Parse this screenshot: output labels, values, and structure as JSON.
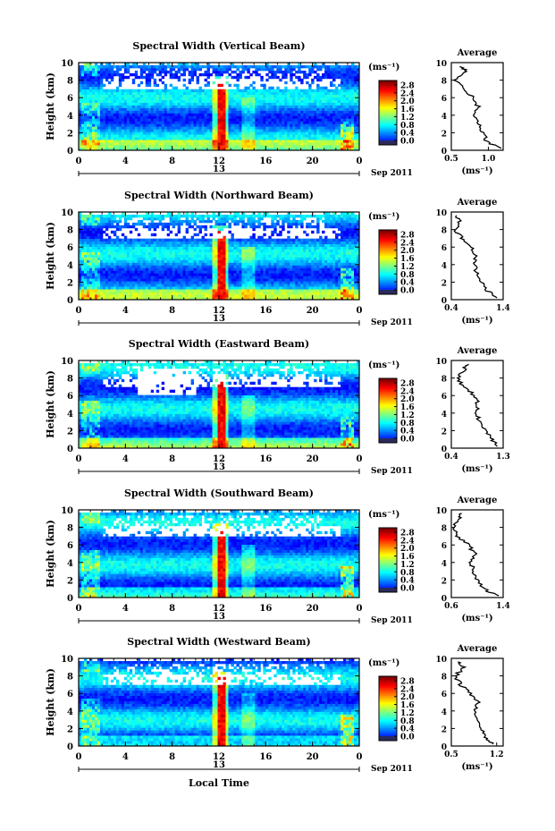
{
  "figure": {
    "date_label": "Sep 2011",
    "day_label": "13",
    "xlabel": "Local Time",
    "average_title": "Average",
    "unit_label": "(ms⁻¹)",
    "colorbar_ticks": [
      "2.8",
      "2.4",
      "2.0",
      "1.6",
      "1.2",
      "0.8",
      "0.4",
      "0.0"
    ]
  },
  "chart_data": [
    {
      "type": "heatmap",
      "title": "Spectral Width (Vertical Beam)",
      "ylabel": "Height (km)",
      "xlim": [
        0,
        24
      ],
      "ylim": [
        0,
        10
      ],
      "xticks": [
        "0",
        "4",
        "8",
        "12",
        "16",
        "20",
        "0"
      ],
      "yticks": [
        "0",
        "2",
        "4",
        "6",
        "8",
        "10"
      ],
      "colorbar": {
        "range": [
          0.0,
          3.0
        ],
        "unit": "(ms⁻¹)"
      },
      "average": {
        "xlim": [
          0.5,
          1.2
        ],
        "xticks": [
          "0.5",
          "1.0"
        ],
        "xlabel": "(ms⁻¹)",
        "profile": [
          [
            0.2,
            1.15
          ],
          [
            1,
            0.98
          ],
          [
            2,
            0.92
          ],
          [
            3,
            0.86
          ],
          [
            4,
            0.82
          ],
          [
            5,
            0.86
          ],
          [
            6,
            0.8
          ],
          [
            7,
            0.66
          ],
          [
            8,
            0.56
          ],
          [
            9,
            0.7
          ],
          [
            9.6,
            0.62
          ]
        ]
      }
    },
    {
      "type": "heatmap",
      "title": "Spectral Width (Northward Beam)",
      "ylabel": "Height (km)",
      "xlim": [
        0,
        24
      ],
      "ylim": [
        0,
        10
      ],
      "xticks": [
        "0",
        "4",
        "8",
        "12",
        "16",
        "20",
        "0"
      ],
      "yticks": [
        "0",
        "2",
        "4",
        "6",
        "8",
        "10"
      ],
      "colorbar": {
        "range": [
          0.0,
          3.0
        ],
        "unit": "(ms⁻¹)"
      },
      "average": {
        "xlim": [
          0.4,
          1.4
        ],
        "xticks": [
          "0.4",
          "1.4"
        ],
        "xlabel": "(ms⁻¹)",
        "profile": [
          [
            0.2,
            1.3
          ],
          [
            1,
            1.1
          ],
          [
            2,
            0.98
          ],
          [
            3,
            0.9
          ],
          [
            4,
            0.84
          ],
          [
            5,
            0.88
          ],
          [
            6,
            0.78
          ],
          [
            7,
            0.6
          ],
          [
            8,
            0.48
          ],
          [
            9,
            0.55
          ],
          [
            9.6,
            0.5
          ]
        ]
      }
    },
    {
      "type": "heatmap",
      "title": "Spectral Width (Eastward Beam)",
      "ylabel": "Height (km)",
      "xlim": [
        0,
        24
      ],
      "ylim": [
        0,
        10
      ],
      "xticks": [
        "0",
        "4",
        "8",
        "12",
        "16",
        "20",
        "0"
      ],
      "yticks": [
        "0",
        "2",
        "4",
        "6",
        "8",
        "10"
      ],
      "colorbar": {
        "range": [
          0.0,
          3.0
        ],
        "unit": "(ms⁻¹)"
      },
      "average": {
        "xlim": [
          0.4,
          1.3
        ],
        "xticks": [
          "0.4",
          "1.3"
        ],
        "xlabel": "(ms⁻¹)",
        "profile": [
          [
            0.2,
            1.2
          ],
          [
            1,
            1.1
          ],
          [
            2,
            0.98
          ],
          [
            3,
            0.9
          ],
          [
            4,
            0.82
          ],
          [
            5,
            0.86
          ],
          [
            6,
            0.8
          ],
          [
            7,
            0.62
          ],
          [
            8,
            0.5
          ],
          [
            9,
            0.62
          ],
          [
            9.6,
            0.7
          ]
        ]
      }
    },
    {
      "type": "heatmap",
      "title": "Spectral Width (Southward Beam)",
      "ylabel": "Height (km)",
      "xlim": [
        0,
        24
      ],
      "ylim": [
        0,
        10
      ],
      "xticks": [
        "0",
        "4",
        "8",
        "12",
        "16",
        "20",
        "0"
      ],
      "yticks": [
        "0",
        "2",
        "4",
        "6",
        "8",
        "10"
      ],
      "colorbar": {
        "range": [
          0.0,
          3.0
        ],
        "unit": "(ms⁻¹)"
      },
      "average": {
        "xlim": [
          0.6,
          1.4
        ],
        "xticks": [
          "0.6",
          "1.4"
        ],
        "xlabel": "(ms⁻¹)",
        "profile": [
          [
            0.2,
            1.3
          ],
          [
            1,
            1.1
          ],
          [
            2,
            1.0
          ],
          [
            3,
            0.94
          ],
          [
            4,
            0.9
          ],
          [
            5,
            0.96
          ],
          [
            6,
            0.86
          ],
          [
            7,
            0.7
          ],
          [
            8,
            0.62
          ],
          [
            9,
            0.72
          ],
          [
            9.6,
            0.76
          ]
        ]
      }
    },
    {
      "type": "heatmap",
      "title": "Spectral Width (Westward Beam)",
      "ylabel": "Height (km)",
      "xlim": [
        0,
        24
      ],
      "ylim": [
        0,
        10
      ],
      "xticks": [
        "0",
        "4",
        "8",
        "12",
        "16",
        "20",
        "0"
      ],
      "yticks": [
        "0",
        "2",
        "4",
        "6",
        "8",
        "10"
      ],
      "colorbar": {
        "range": [
          0.0,
          3.0
        ],
        "unit": "(ms⁻¹)"
      },
      "average": {
        "xlim": [
          0.5,
          1.3
        ],
        "xticks": [
          "0.5",
          "1.2"
        ],
        "xlabel": "(ms⁻¹)",
        "profile": [
          [
            0.2,
            1.15
          ],
          [
            1,
            1.02
          ],
          [
            2,
            0.96
          ],
          [
            3,
            0.9
          ],
          [
            4,
            0.84
          ],
          [
            5,
            0.92
          ],
          [
            6,
            0.8
          ],
          [
            7,
            0.64
          ],
          [
            8,
            0.56
          ],
          [
            9,
            0.7
          ],
          [
            9.6,
            0.6
          ]
        ]
      }
    }
  ]
}
